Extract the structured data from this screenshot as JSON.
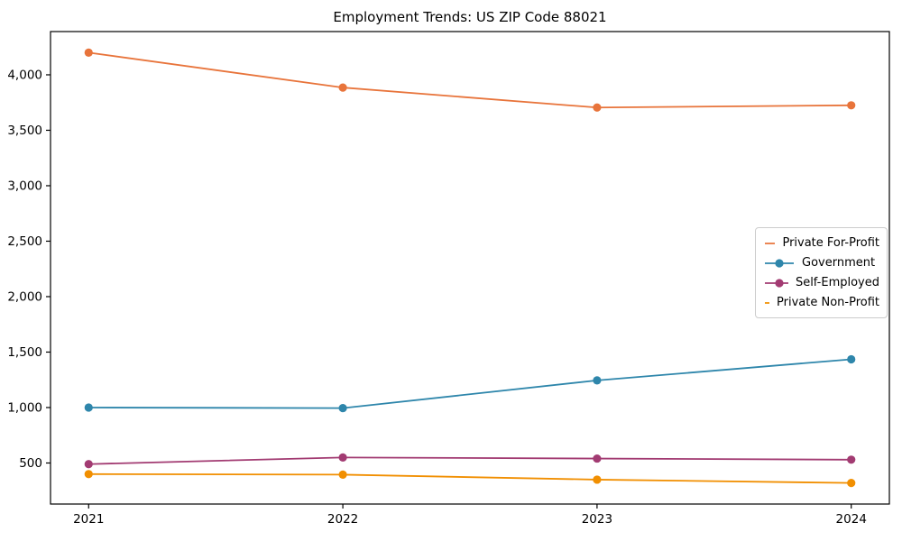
{
  "chart_data": {
    "type": "line",
    "title": "Employment Trends: US ZIP Code 88021",
    "x_labels": [
      "2021",
      "2022",
      "2023",
      "2024"
    ],
    "series": [
      {
        "name": "Private For-Profit",
        "color": "#E8743B",
        "values": [
          4200,
          3885,
          3705,
          3725
        ]
      },
      {
        "name": "Government",
        "color": "#2E86AB",
        "values": [
          1000,
          995,
          1245,
          1435
        ]
      },
      {
        "name": "Self-Employed",
        "color": "#A23B72",
        "values": [
          490,
          550,
          540,
          530
        ]
      },
      {
        "name": "Private Non-Profit",
        "color": "#F18F01",
        "values": [
          400,
          395,
          350,
          320
        ]
      }
    ],
    "yticks": [
      500,
      1000,
      1500,
      2000,
      2500,
      3000,
      3500,
      4000
    ],
    "ytick_labels": [
      "500",
      "1,000",
      "1,500",
      "2,000",
      "2,500",
      "3,000",
      "3,500",
      "4,000"
    ],
    "ylim": [
      130,
      4390
    ],
    "grid": false,
    "marker": "circle",
    "legend_position": "center right",
    "legend_border_color": "#cccccc",
    "axis_color": "#000000"
  }
}
